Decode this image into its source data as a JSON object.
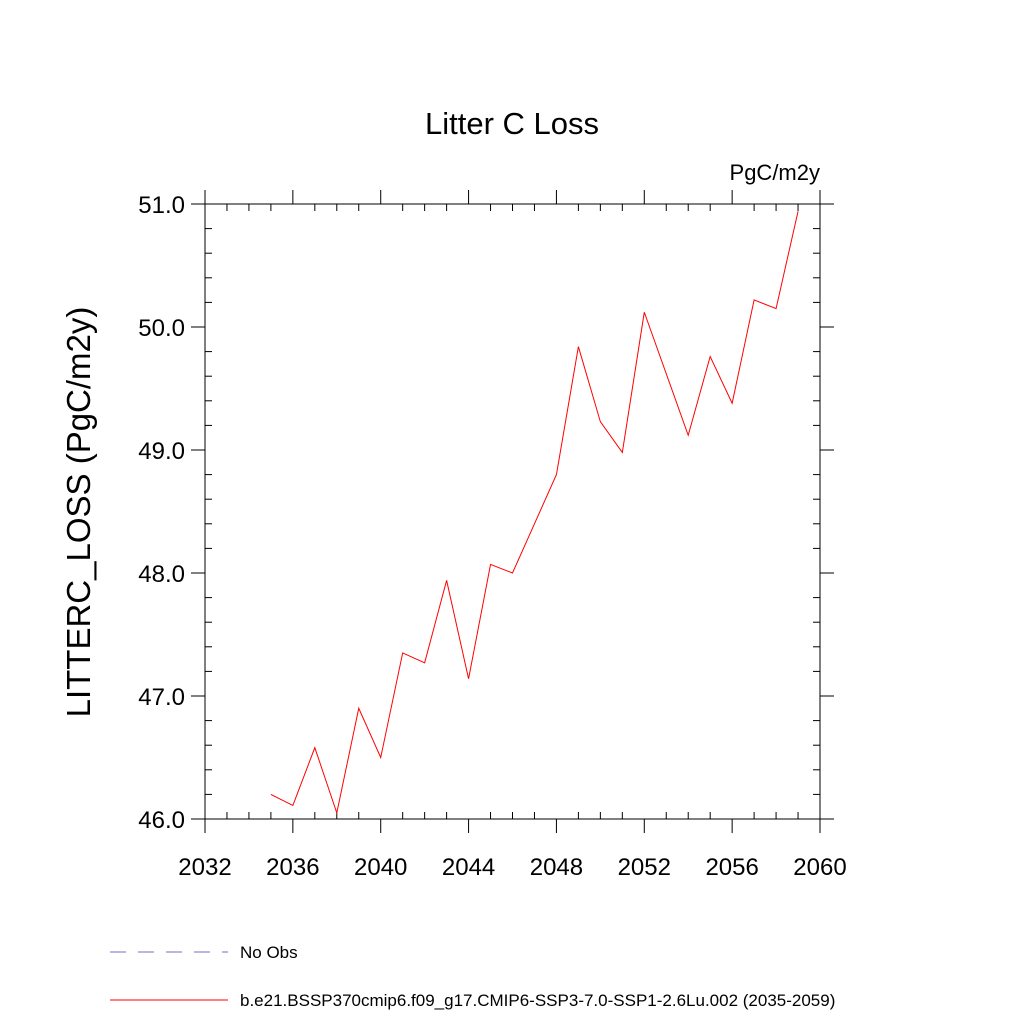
{
  "chart_data": {
    "type": "line",
    "title": "Litter C Loss",
    "units_label": "PgC/m2y",
    "ylabel": "LITTERC_LOSS  (PgC/m2y)",
    "xlabel": "",
    "xlim": [
      2032,
      2060
    ],
    "ylim": [
      46.0,
      51.0
    ],
    "x_ticks": [
      2032,
      2036,
      2040,
      2044,
      2048,
      2052,
      2056,
      2060
    ],
    "x_tick_labels": [
      "2032",
      "2036",
      "2040",
      "2044",
      "2048",
      "2052",
      "2056",
      "2060"
    ],
    "y_ticks": [
      46.0,
      47.0,
      48.0,
      49.0,
      50.0,
      51.0
    ],
    "y_tick_labels": [
      "46.0",
      "47.0",
      "48.0",
      "49.0",
      "50.0",
      "51.0"
    ],
    "grid": false,
    "legend_position": "bottom",
    "x": [
      2035,
      2036,
      2037,
      2038,
      2039,
      2040,
      2041,
      2042,
      2043,
      2044,
      2045,
      2046,
      2047,
      2048,
      2049,
      2050,
      2051,
      2052,
      2053,
      2054,
      2055,
      2056,
      2057,
      2058,
      2059
    ],
    "series": [
      {
        "name": "b.e21.BSSP370cmip6.f09_g17.CMIP6-SSP3-7.0-SSP1-2.6Lu.002 (2035-2059)",
        "color": "#ff0000",
        "style": "solid",
        "values": [
          46.2,
          46.11,
          46.58,
          46.05,
          46.9,
          46.5,
          47.35,
          47.27,
          47.94,
          47.14,
          48.07,
          48.0,
          48.4,
          48.8,
          49.84,
          49.23,
          48.98,
          50.12,
          49.62,
          49.12,
          49.76,
          49.38,
          50.22,
          50.15,
          50.94
        ]
      }
    ],
    "legend": [
      {
        "label": "No Obs",
        "color": "#7b68c9",
        "style": "dashed"
      },
      {
        "label": "b.e21.BSSP370cmip6.f09_g17.CMIP6-SSP3-7.0-SSP1-2.6Lu.002 (2035-2059)",
        "color": "#ff0000",
        "style": "solid"
      }
    ]
  }
}
